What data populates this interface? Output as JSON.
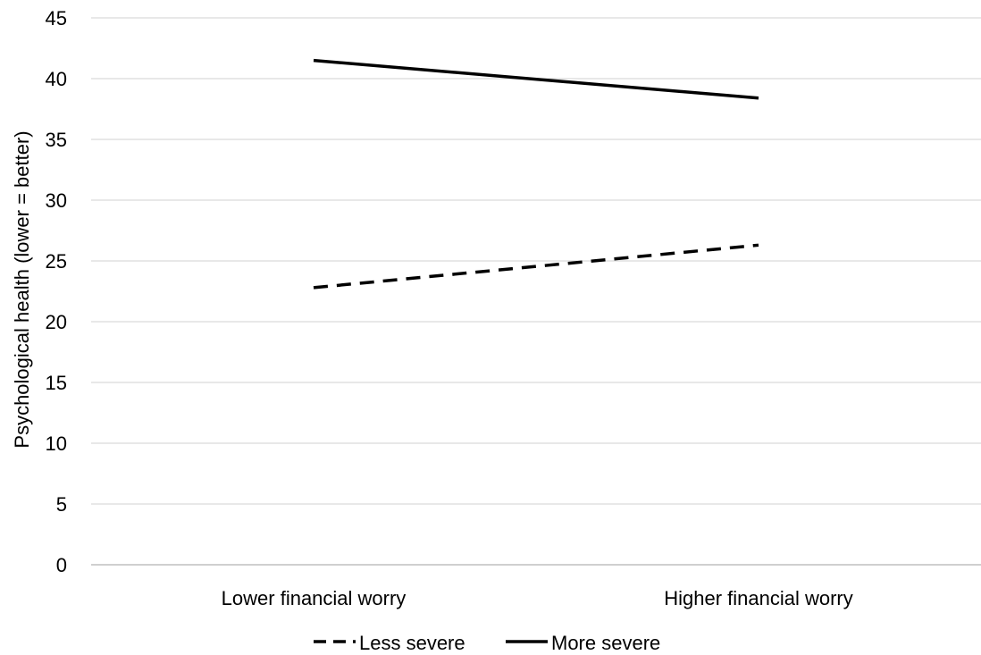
{
  "chart_data": {
    "type": "line",
    "title": "",
    "xlabel": "",
    "ylabel": "Psychological health (lower = better)",
    "categories": [
      "Lower financial worry",
      "Higher financial worry"
    ],
    "ylim": [
      0,
      45
    ],
    "yticks": [
      0,
      5,
      10,
      15,
      20,
      25,
      30,
      35,
      40,
      45
    ],
    "grid": true,
    "legend_position": "bottom",
    "series": [
      {
        "name": "Less severe",
        "values": [
          22.8,
          26.3
        ],
        "style": "dashed",
        "color": "#000000"
      },
      {
        "name": "More severe",
        "values": [
          41.5,
          38.4
        ],
        "style": "solid",
        "color": "#000000"
      }
    ]
  }
}
